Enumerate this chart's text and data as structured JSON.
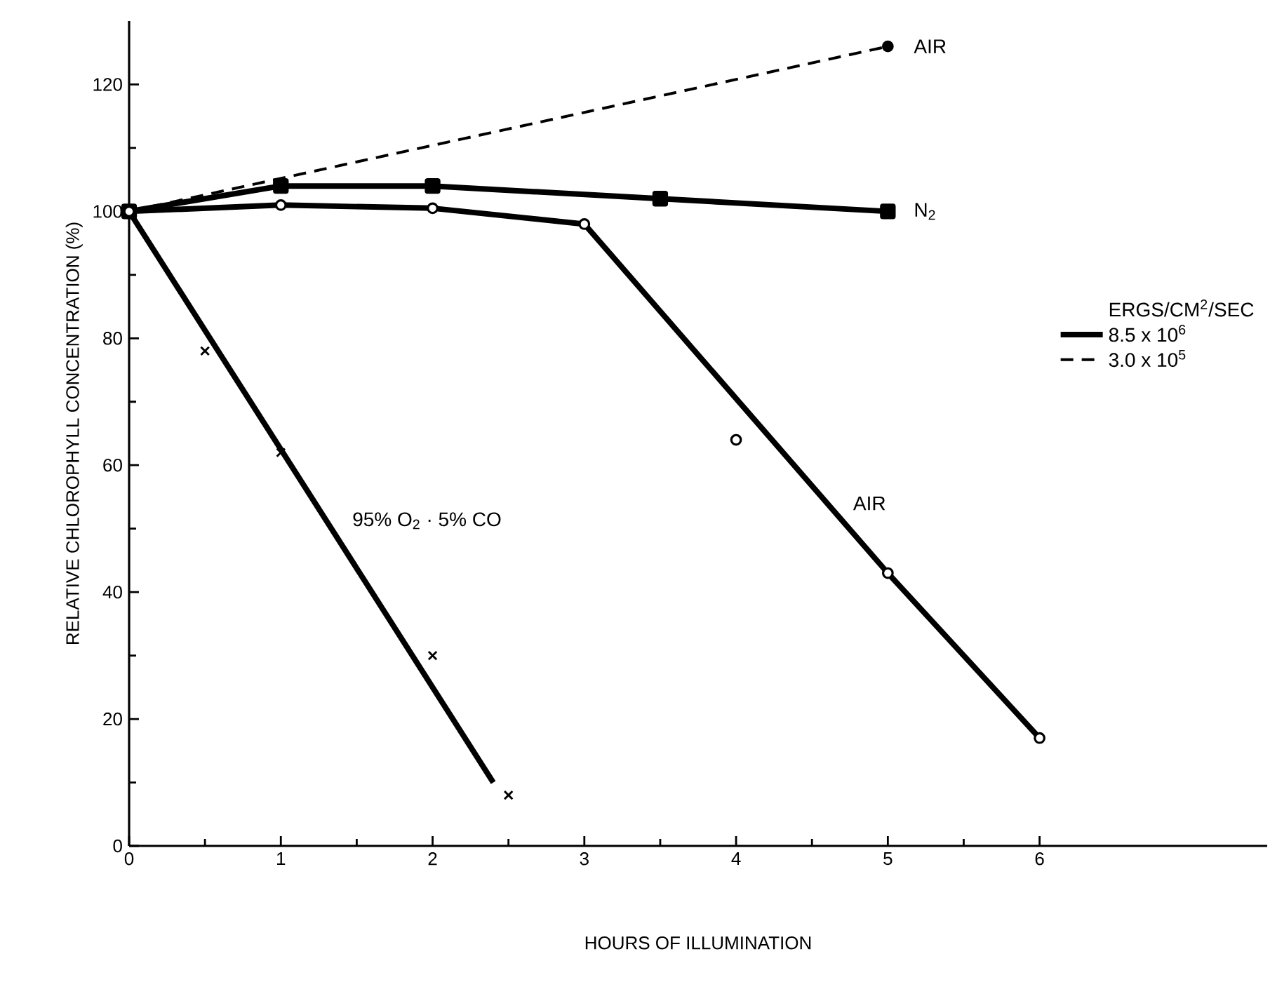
{
  "chart_data": {
    "type": "line",
    "xlabel": "HOURS OF ILLUMINATION",
    "ylabel": "RELATIVE CHLOROPHYLL CONCENTRATION (%)",
    "legend_title": "ERGS/CM$^{2}$/SEC",
    "legend": "right",
    "xlim": [
      0,
      7.5
    ],
    "ylim": [
      0,
      130
    ],
    "xticks": [
      0,
      1,
      2,
      3,
      4,
      5,
      6
    ],
    "yticks": [
      0,
      20,
      40,
      60,
      80,
      100,
      120
    ],
    "series": [
      {
        "name": "8.5 x 10$^{6}$",
        "color": "#000000",
        "x": [
          0,
          1,
          2,
          3.5,
          5
        ],
        "values": [
          100,
          104,
          104,
          102,
          100
        ],
        "marker": "square",
        "line_style": "solid"
      },
      {
        "name": "3.0 x 10$^{5}$",
        "color": "#000000",
        "x": [
          0,
          5
        ],
        "values": [
          100,
          126
        ],
        "marker": "circle",
        "line_style": "dashed"
      },
      {
        "color": "#000000",
        "x": [
          0,
          1,
          2,
          3,
          5,
          6
        ],
        "values": [
          100,
          101,
          100.5,
          98,
          43,
          17
        ],
        "marker": "circle",
        "line_style": "solid"
      },
      {
        "type": "scatter",
        "color": "#000000",
        "x": [
          4
        ],
        "values": [
          64
        ],
        "marker": "circle"
      },
      {
        "type": "scatter",
        "color": "#000000",
        "x": [
          0.5,
          1,
          2,
          2.5
        ],
        "values": [
          78,
          62,
          30,
          8
        ],
        "marker": "cross"
      },
      {
        "type": "line",
        "color": "#000000",
        "x": [
          0,
          2.4
        ],
        "values": [
          100,
          10
        ],
        "marker": "none",
        "line_style": "solid"
      }
    ],
    "annotations": [
      {
        "text": "AIR",
        "x": 5,
        "y": 126
      },
      {
        "text": "N$_{2}$",
        "x": 5,
        "y": 100
      },
      {
        "text": "AIR",
        "x": 4.6,
        "y": 54
      },
      {
        "text": "95% O$_{2}$ · 5% CO",
        "x": 1.3,
        "y": 51.25
      }
    ]
  }
}
